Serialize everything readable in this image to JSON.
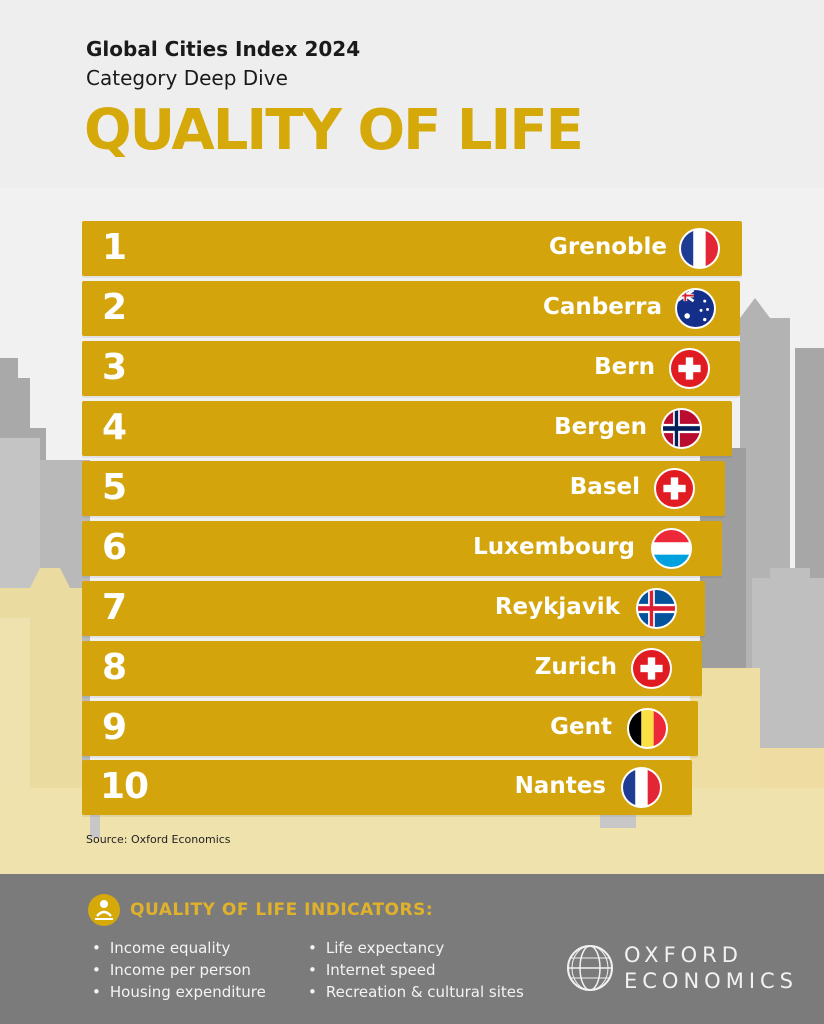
{
  "header": {
    "kicker": "Global Cities Index 2024",
    "subkicker": "Category Deep Dive",
    "headline": "QUALITY OF LIFE"
  },
  "colors": {
    "gold": "#d4a40d",
    "headline_gold": "#d6a90a",
    "footer_gray": "#7b7b7b",
    "skyline_gray": "#b4b4b4",
    "skyline_cream": "#ecdca2"
  },
  "rankings": [
    {
      "rank": "1",
      "city": "Grenoble",
      "flag": "france-flag-icon"
    },
    {
      "rank": "2",
      "city": "Canberra",
      "flag": "australia-flag-icon"
    },
    {
      "rank": "3",
      "city": "Bern",
      "flag": "switzerland-flag-icon"
    },
    {
      "rank": "4",
      "city": "Bergen",
      "flag": "norway-flag-icon"
    },
    {
      "rank": "5",
      "city": "Basel",
      "flag": "switzerland-flag-icon"
    },
    {
      "rank": "6",
      "city": "Luxembourg",
      "flag": "luxembourg-flag-icon"
    },
    {
      "rank": "7",
      "city": "Reykjavik",
      "flag": "iceland-flag-icon"
    },
    {
      "rank": "8",
      "city": "Zurich",
      "flag": "switzerland-flag-icon"
    },
    {
      "rank": "9",
      "city": "Gent",
      "flag": "belgium-flag-icon"
    },
    {
      "rank": "10",
      "city": "Nantes",
      "flag": "france-flag-icon"
    }
  ],
  "source": "Source: Oxford Economics",
  "indicators": {
    "title": "QUALITY OF LIFE INDICATORS:",
    "icon": "wellbeing-icon",
    "col1": [
      "Income equality",
      "Income per person",
      "Housing expenditure"
    ],
    "col2": [
      "Life expectancy",
      "Internet speed",
      "Recreation & cultural sites"
    ]
  },
  "brand": {
    "line1": "OXFORD",
    "line2": "ECONOMICS",
    "logo": "globe-logo-icon"
  }
}
